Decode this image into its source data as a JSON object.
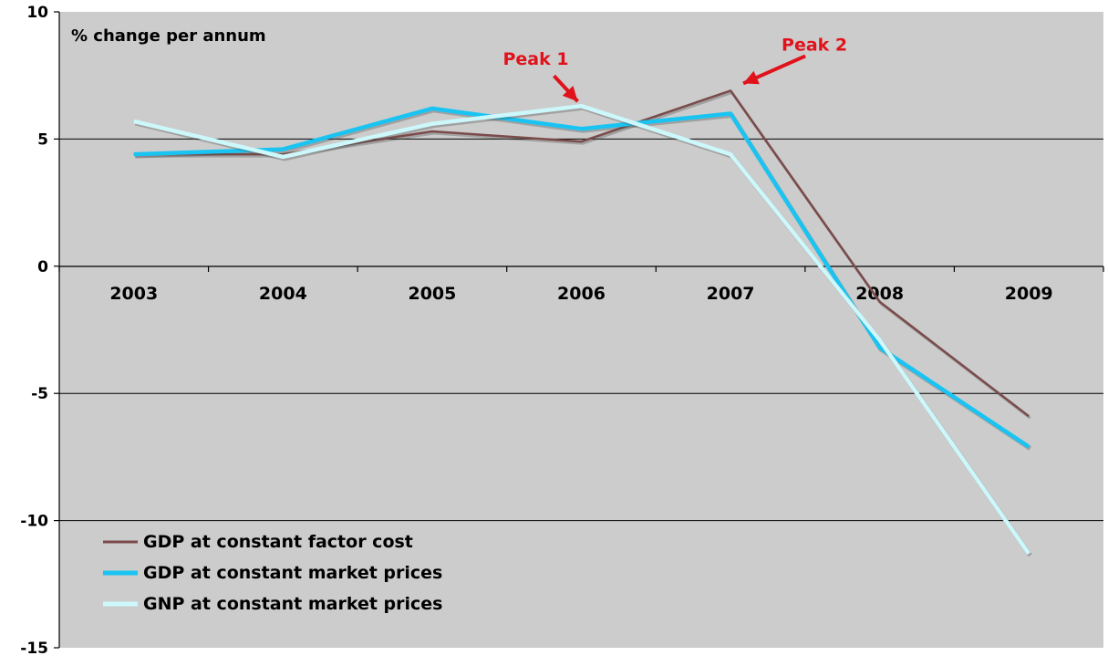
{
  "chart_data": {
    "type": "line",
    "unit_label": "% change per annum",
    "categories": [
      "2003",
      "2004",
      "2005",
      "2006",
      "2007",
      "2008",
      "2009"
    ],
    "ylim": [
      -15,
      10
    ],
    "yticks": [
      10,
      5,
      0,
      -5,
      -10,
      -15
    ],
    "ytick_labels": [
      "10",
      "5",
      "0",
      "-5",
      "-10",
      "-15"
    ],
    "grid": true,
    "legend_position": "bottom-left",
    "series": [
      {
        "name": "GDP at constant  factor  cost",
        "color": "#7b4b4b",
        "values": [
          4.4,
          4.4,
          5.3,
          4.9,
          6.9,
          -1.4,
          -5.9
        ]
      },
      {
        "name": "GDP at constant  market  prices",
        "color": "#19c4f2",
        "values": [
          4.4,
          4.6,
          6.2,
          5.4,
          6.0,
          -3.2,
          -7.1
        ]
      },
      {
        "name": "GNP at  constant  market  prices",
        "color": "#cdf8fb",
        "values": [
          5.7,
          4.3,
          5.6,
          6.3,
          4.4,
          -2.9,
          -11.3
        ]
      }
    ],
    "annotations": [
      {
        "text": "Peak 1",
        "category": "2006",
        "value": 6.3
      },
      {
        "text": "Peak 2",
        "category": "2007",
        "value": 6.9
      }
    ]
  }
}
